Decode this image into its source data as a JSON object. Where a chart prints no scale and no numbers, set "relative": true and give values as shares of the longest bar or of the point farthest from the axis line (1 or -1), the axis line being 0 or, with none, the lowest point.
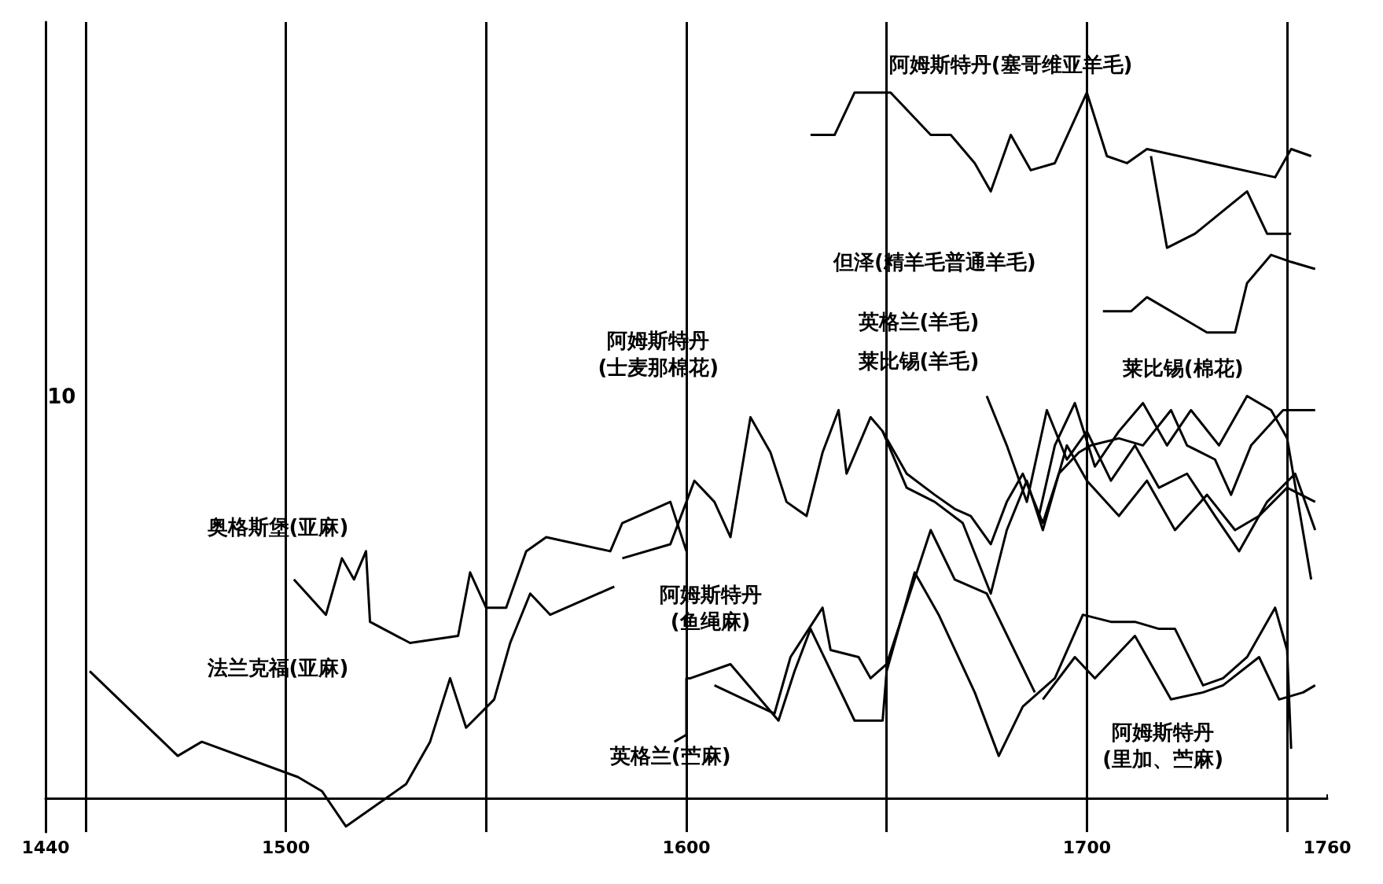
{
  "chart_data": {
    "type": "line",
    "relative": true,
    "xlim": [
      1440,
      1760
    ],
    "xticks": [
      1440,
      1500,
      1600,
      1700,
      1760
    ],
    "grid": false,
    "series": [
      {
        "type": "line",
        "color": "#000000",
        "x": [
          1631,
          1637,
          1642,
          1651,
          1661,
          1666,
          1672,
          1676,
          1681,
          1686,
          1692,
          1700,
          1705,
          1710,
          1715,
          1747,
          1751,
          1756
        ],
        "values": [
          0.94,
          0.94,
          1.0,
          1.0,
          0.94,
          0.94,
          0.9,
          0.86,
          0.94,
          0.89,
          0.9,
          1.0,
          0.91,
          0.9,
          0.92,
          0.88,
          0.92,
          0.91
        ]
      },
      {
        "type": "line",
        "color": "#000000",
        "x": [
          1716,
          1720,
          1727,
          1740,
          1745,
          1751
        ],
        "values": [
          0.91,
          0.78,
          0.8,
          0.86,
          0.8,
          0.8
        ]
      },
      {
        "type": "line",
        "color": "#000000",
        "x": [
          1704,
          1711,
          1715,
          1724,
          1730,
          1737,
          1740,
          1746,
          1751,
          1757
        ],
        "values": [
          0.69,
          0.69,
          0.71,
          0.68,
          0.66,
          0.66,
          0.73,
          0.77,
          0.76,
          0.75
        ]
      },
      {
        "type": "line",
        "color": "#000000",
        "x": [
          1451,
          1473,
          1479,
          1503,
          1509,
          1515,
          1530,
          1536,
          1541,
          1545,
          1552,
          1556,
          1561,
          1566,
          1582
        ],
        "values": [
          0.18,
          0.06,
          0.08,
          0.03,
          0.01,
          -0.04,
          0.02,
          0.08,
          0.17,
          0.1,
          0.14,
          0.22,
          0.29,
          0.26,
          0.3
        ]
      },
      {
        "type": "line",
        "color": "#000000",
        "x": [
          1502,
          1510,
          1514,
          1517,
          1520,
          1521,
          1531,
          1543,
          1546,
          1550,
          1555,
          1560,
          1565,
          1581,
          1584,
          1596,
          1600
        ],
        "values": [
          0.31,
          0.26,
          0.34,
          0.31,
          0.35,
          0.25,
          0.22,
          0.23,
          0.32,
          0.27,
          0.27,
          0.35,
          0.37,
          0.35,
          0.39,
          0.42,
          0.35
        ]
      },
      {
        "type": "line",
        "color": "#000000",
        "x": [
          1584,
          1596,
          1600,
          1602,
          1607,
          1611,
          1616,
          1621,
          1625,
          1630,
          1634,
          1638,
          1640,
          1646,
          1649,
          1655,
          1662,
          1667,
          1671,
          1676,
          1680,
          1684,
          1689,
          1693,
          1698,
          1701,
          1708,
          1714,
          1721,
          1725,
          1732,
          1736,
          1741,
          1749,
          1757
        ],
        "values": [
          0.34,
          0.36,
          0.42,
          0.45,
          0.42,
          0.37,
          0.54,
          0.49,
          0.42,
          0.4,
          0.49,
          0.55,
          0.46,
          0.54,
          0.52,
          0.46,
          0.43,
          0.41,
          0.4,
          0.36,
          0.42,
          0.46,
          0.39,
          0.46,
          0.49,
          0.5,
          0.51,
          0.5,
          0.55,
          0.5,
          0.48,
          0.43,
          0.5,
          0.55,
          0.55
        ]
      },
      {
        "type": "line",
        "color": "#000000",
        "x": [
          1649,
          1655,
          1662,
          1669,
          1676,
          1680,
          1685,
          1689,
          1695,
          1700,
          1708,
          1715,
          1722,
          1730,
          1737,
          1743,
          1750,
          1757
        ],
        "values": [
          0.52,
          0.44,
          0.42,
          0.39,
          0.29,
          0.38,
          0.45,
          0.38,
          0.5,
          0.45,
          0.4,
          0.45,
          0.38,
          0.43,
          0.38,
          0.4,
          0.44,
          0.42
        ]
      },
      {
        "type": "line",
        "color": "#000000",
        "x": [
          1675,
          1680,
          1685,
          1690,
          1695,
          1700,
          1706,
          1712,
          1718,
          1725,
          1732,
          1738,
          1745,
          1752,
          1757
        ],
        "values": [
          0.57,
          0.5,
          0.42,
          0.55,
          0.48,
          0.52,
          0.45,
          0.5,
          0.44,
          0.46,
          0.4,
          0.35,
          0.42,
          0.46,
          0.38
        ]
      },
      {
        "type": "line",
        "color": "#000000",
        "x": [
          1688,
          1692,
          1697,
          1702,
          1708,
          1714,
          1720,
          1726,
          1733,
          1740,
          1746,
          1750,
          1756
        ],
        "values": [
          0.4,
          0.5,
          0.56,
          0.47,
          0.52,
          0.56,
          0.5,
          0.55,
          0.5,
          0.57,
          0.55,
          0.51,
          0.31
        ]
      },
      {
        "type": "line",
        "color": "#000000",
        "x": [
          1607,
          1622,
          1626,
          1634,
          1636,
          1643,
          1646,
          1650,
          1661,
          1667,
          1675,
          1687
        ],
        "values": [
          0.16,
          0.12,
          0.2,
          0.27,
          0.21,
          0.2,
          0.17,
          0.19,
          0.38,
          0.31,
          0.29,
          0.15
        ]
      },
      {
        "type": "line",
        "color": "#000000",
        "x": [
          1597,
          1600,
          1600,
          1601,
          1611,
          1623,
          1627,
          1631,
          1642,
          1649,
          1650,
          1657,
          1663,
          1672,
          1678,
          1684,
          1692,
          1699,
          1706,
          1712,
          1718,
          1722,
          1729,
          1734,
          1740,
          1747,
          1750,
          1751
        ],
        "values": [
          0.08,
          0.09,
          0.17,
          0.17,
          0.19,
          0.11,
          0.18,
          0.24,
          0.11,
          0.11,
          0.18,
          0.32,
          0.26,
          0.15,
          0.06,
          0.13,
          0.17,
          0.26,
          0.25,
          0.25,
          0.24,
          0.24,
          0.16,
          0.17,
          0.2,
          0.27,
          0.21,
          0.07
        ]
      },
      {
        "type": "line",
        "color": "#000000",
        "x": [
          1689,
          1697,
          1702,
          1712,
          1721,
          1729,
          1734,
          1743,
          1748,
          1754,
          1757
        ],
        "values": [
          0.14,
          0.2,
          0.17,
          0.23,
          0.14,
          0.15,
          0.16,
          0.2,
          0.14,
          0.15,
          0.16
        ]
      }
    ],
    "ref_lines": [
      {
        "axis": "x",
        "value": 1450,
        "color": "#000000"
      },
      {
        "axis": "x",
        "value": 1500,
        "color": "#000000"
      },
      {
        "axis": "x",
        "value": 1550,
        "color": "#000000"
      },
      {
        "axis": "x",
        "value": 1600,
        "color": "#000000"
      },
      {
        "axis": "x",
        "value": 1650,
        "color": "#000000"
      },
      {
        "axis": "x",
        "value": 1700,
        "color": "#000000"
      },
      {
        "axis": "x",
        "value": 1750,
        "color": "#000000"
      }
    ],
    "annotations": [
      "10",
      "阿姆斯特丹(塞哥维亚羊毛)",
      "但泽(精羊毛普通羊毛)",
      "英格兰(羊毛)",
      "莱比锡(羊毛)",
      "莱比锡(棉花)",
      "阿姆斯特丹\n(士麦那棉花)",
      "奥格斯堡(亚麻)",
      "法兰克福(亚麻)",
      "阿姆斯特丹\n(鱼绳麻)",
      "英格兰(苎麻)",
      "阿姆斯特丹\n(里加、苎麻)"
    ]
  }
}
